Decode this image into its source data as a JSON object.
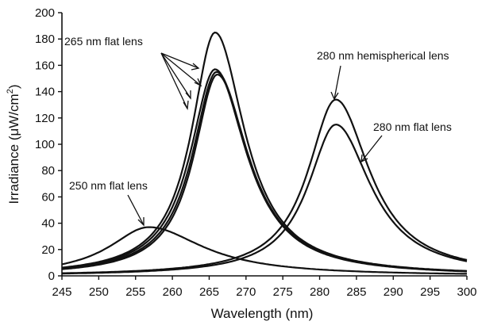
{
  "chart_data": {
    "type": "line",
    "xlabel": "Wavelength (nm)",
    "ylabel_main": "Irradiance (μW/cm",
    "ylabel_sup": "2",
    "ylabel_end": ")",
    "xlim": [
      245,
      300
    ],
    "ylim": [
      0,
      200
    ],
    "xticks": [
      245,
      250,
      255,
      260,
      265,
      270,
      275,
      280,
      285,
      290,
      295,
      300
    ],
    "yticks": [
      0,
      20,
      40,
      60,
      80,
      100,
      120,
      140,
      160,
      180,
      200
    ],
    "grid": false,
    "legend": "none",
    "series": [
      {
        "name": "250 nm flat lens",
        "peak_x": 256.8,
        "peak_y": 37,
        "wl": 6.6,
        "wr": 9.0
      },
      {
        "name": "265 nm flat lens",
        "peak_x": 265.8,
        "peak_y": 185,
        "wl": 3.9,
        "wr": 4.9
      },
      {
        "name": "265 nm flat lens",
        "peak_x": 265.8,
        "peak_y": 157,
        "wl": 4.1,
        "wr": 5.2
      },
      {
        "name": "265 nm flat lens",
        "peak_x": 266.0,
        "peak_y": 155,
        "wl": 4.0,
        "wr": 5.2
      },
      {
        "name": "265 nm flat lens",
        "peak_x": 266.1,
        "peak_y": 153,
        "wl": 3.9,
        "wr": 5.1
      },
      {
        "name": "280 nm hemispherical lens",
        "peak_x": 282.2,
        "peak_y": 134,
        "wl": 4.6,
        "wr": 5.6
      },
      {
        "name": "280 nm flat lens",
        "peak_x": 282.2,
        "peak_y": 115,
        "wl": 4.6,
        "wr": 5.8
      }
    ],
    "annotations": [
      {
        "text": "265 nm flat lens"
      },
      {
        "text": "250 nm flat lens"
      },
      {
        "text": "280 nm hemispherical lens"
      },
      {
        "text": "280 nm flat lens"
      }
    ]
  }
}
